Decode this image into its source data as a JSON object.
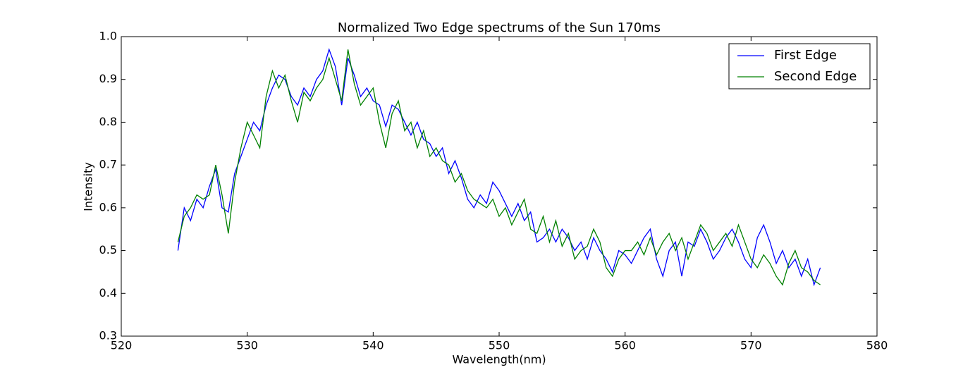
{
  "chart_data": {
    "type": "line",
    "title": "Normalized Two Edge spectrums of the Sun 170ms",
    "x_label": "Wavelength(nm)",
    "y_label": "Intensity",
    "x": [
      524.5,
      525,
      525.5,
      526,
      526.5,
      527,
      527.5,
      528,
      528.5,
      529,
      529.5,
      530,
      530.5,
      531,
      531.5,
      532,
      532.5,
      533,
      533.5,
      534,
      534.5,
      535,
      535.5,
      536,
      536.5,
      537,
      537.5,
      538,
      538.5,
      539,
      539.5,
      540,
      540.5,
      541,
      541.5,
      542,
      542.5,
      543,
      543.5,
      544,
      544.5,
      545,
      545.5,
      546,
      546.5,
      547,
      547.5,
      548,
      548.5,
      549,
      549.5,
      550,
      550.5,
      551,
      551.5,
      552,
      552.5,
      553,
      553.5,
      554,
      554.5,
      555,
      555.5,
      556,
      556.5,
      557,
      557.5,
      558,
      558.5,
      559,
      559.5,
      560,
      560.5,
      561,
      561.5,
      562,
      562.5,
      563,
      563.5,
      564,
      564.5,
      565,
      565.5,
      566,
      566.5,
      567,
      567.5,
      568,
      568.5,
      569,
      569.5,
      570,
      570.5,
      571,
      571.5,
      572,
      572.5,
      573,
      573.5,
      574,
      574.5,
      575,
      575.5
    ],
    "series": [
      {
        "name": "First Edge",
        "color": "#0000ff",
        "values": [
          0.5,
          0.6,
          0.57,
          0.62,
          0.6,
          0.65,
          0.69,
          0.6,
          0.59,
          0.68,
          0.72,
          0.76,
          0.8,
          0.78,
          0.84,
          0.88,
          0.91,
          0.9,
          0.86,
          0.84,
          0.88,
          0.86,
          0.9,
          0.92,
          0.97,
          0.93,
          0.84,
          0.95,
          0.91,
          0.86,
          0.88,
          0.85,
          0.84,
          0.79,
          0.84,
          0.83,
          0.8,
          0.77,
          0.8,
          0.76,
          0.75,
          0.72,
          0.74,
          0.68,
          0.71,
          0.67,
          0.62,
          0.6,
          0.63,
          0.61,
          0.66,
          0.64,
          0.61,
          0.58,
          0.61,
          0.57,
          0.59,
          0.52,
          0.53,
          0.55,
          0.52,
          0.55,
          0.53,
          0.5,
          0.52,
          0.48,
          0.53,
          0.5,
          0.48,
          0.45,
          0.5,
          0.49,
          0.47,
          0.5,
          0.53,
          0.55,
          0.48,
          0.44,
          0.5,
          0.52,
          0.44,
          0.52,
          0.51,
          0.55,
          0.52,
          0.48,
          0.5,
          0.53,
          0.55,
          0.52,
          0.48,
          0.46,
          0.53,
          0.56,
          0.52,
          0.47,
          0.5,
          0.46,
          0.48,
          0.44,
          0.48,
          0.42,
          0.46
        ]
      },
      {
        "name": "Second Edge",
        "color": "#008000",
        "values": [
          0.52,
          0.58,
          0.6,
          0.63,
          0.62,
          0.63,
          0.7,
          0.63,
          0.54,
          0.66,
          0.74,
          0.8,
          0.77,
          0.74,
          0.86,
          0.92,
          0.88,
          0.91,
          0.85,
          0.8,
          0.87,
          0.85,
          0.88,
          0.9,
          0.95,
          0.9,
          0.85,
          0.97,
          0.89,
          0.84,
          0.86,
          0.88,
          0.8,
          0.74,
          0.82,
          0.85,
          0.78,
          0.8,
          0.74,
          0.78,
          0.72,
          0.74,
          0.71,
          0.7,
          0.66,
          0.68,
          0.64,
          0.62,
          0.61,
          0.6,
          0.62,
          0.58,
          0.6,
          0.56,
          0.59,
          0.62,
          0.55,
          0.54,
          0.58,
          0.52,
          0.57,
          0.51,
          0.54,
          0.48,
          0.5,
          0.51,
          0.55,
          0.52,
          0.46,
          0.44,
          0.48,
          0.5,
          0.5,
          0.52,
          0.49,
          0.53,
          0.49,
          0.52,
          0.54,
          0.5,
          0.53,
          0.48,
          0.52,
          0.56,
          0.54,
          0.5,
          0.52,
          0.54,
          0.51,
          0.56,
          0.52,
          0.48,
          0.46,
          0.49,
          0.47,
          0.44,
          0.42,
          0.47,
          0.5,
          0.46,
          0.45,
          0.43,
          0.42
        ]
      }
    ],
    "xlim": [
      520,
      580
    ],
    "xticks": [
      520,
      530,
      540,
      550,
      560,
      570,
      580
    ],
    "ylim": [
      0.3,
      1.0
    ],
    "yticks": [
      0.3,
      0.4,
      0.5,
      0.6,
      0.7,
      0.8,
      0.9,
      {
        "value": 1.0,
        "label": "1.0"
      }
    ],
    "grid": false,
    "legend": "upper right"
  }
}
